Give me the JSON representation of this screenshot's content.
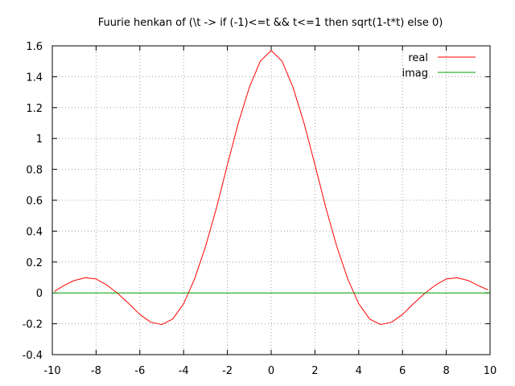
{
  "chart_data": {
    "type": "line",
    "title": "Fuurie henkan of (\\t -> if (-1)<=t && t<=1 then sqrt(1-t*t) else 0)",
    "xlabel": "",
    "ylabel": "",
    "xlim": [
      -10,
      10
    ],
    "ylim": [
      -0.4,
      1.6
    ],
    "x_ticks": [
      "-10",
      "-8",
      "-6",
      "-4",
      "-2",
      "0",
      "2",
      "4",
      "6",
      "8",
      "10"
    ],
    "y_ticks": [
      "-0.4",
      "-0.2",
      "0",
      "0.2",
      "0.4",
      "0.6",
      "0.8",
      "1",
      "1.2",
      "1.4",
      "1.6"
    ],
    "grid": true,
    "legend_position": "top-right",
    "series": [
      {
        "name": "real",
        "color": "#ff0000",
        "x": [
          -9.9,
          -9.5,
          -9.0,
          -8.5,
          -8.0,
          -7.5,
          -7.0,
          -6.5,
          -6.0,
          -5.5,
          -5.0,
          -4.5,
          -4.0,
          -3.5,
          -3.0,
          -2.5,
          -2.0,
          -1.5,
          -1.0,
          -0.5,
          0.0,
          0.5,
          1.0,
          1.5,
          2.0,
          2.5,
          3.0,
          3.5,
          4.0,
          4.5,
          5.0,
          5.5,
          6.0,
          6.5,
          7.0,
          7.5,
          8.0,
          8.5,
          9.0,
          9.5,
          9.9
        ],
        "values": [
          0.01,
          0.045,
          0.08,
          0.098,
          0.09,
          0.05,
          -0.005,
          -0.07,
          -0.14,
          -0.19,
          -0.205,
          -0.17,
          -0.07,
          0.09,
          0.3,
          0.55,
          0.83,
          1.1,
          1.33,
          1.5,
          1.57,
          1.5,
          1.33,
          1.1,
          0.83,
          0.55,
          0.3,
          0.09,
          -0.07,
          -0.17,
          -0.205,
          -0.19,
          -0.14,
          -0.07,
          -0.005,
          0.05,
          0.09,
          0.098,
          0.08,
          0.045,
          0.02
        ]
      },
      {
        "name": "imag",
        "color": "#00a000",
        "x": [
          -10,
          10
        ],
        "values": [
          0,
          0
        ]
      }
    ]
  }
}
